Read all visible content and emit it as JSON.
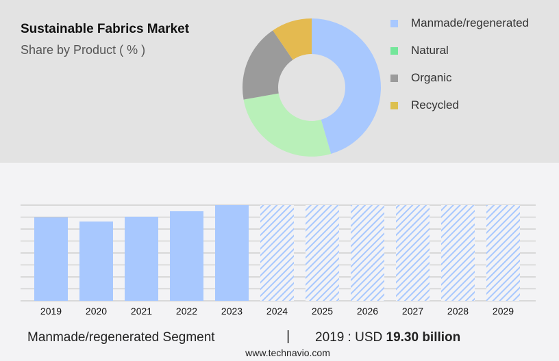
{
  "chart_data": [
    {
      "type": "pie",
      "title": "Sustainable Fabrics Market",
      "subtitle": "Share by Product ( % )",
      "labels": [
        "Manmade/regenerated",
        "Natural",
        "Organic",
        "Recycled"
      ],
      "values": [
        45.5,
        26.7,
        18.3,
        9.5
      ],
      "colors": [
        "#a8c8fe",
        "#b9f0b9",
        "#9b9b9b",
        "#e4ba50"
      ],
      "legend_colors": [
        "#a8c8fe",
        "#74e69a",
        "#9b9b9b",
        "#dcc050"
      ],
      "donut": true,
      "legend": "right"
    },
    {
      "type": "bar",
      "categories": [
        "2019",
        "2020",
        "2021",
        "2022",
        "2023",
        "2024",
        "2025",
        "2026",
        "2027",
        "2028",
        "2029"
      ],
      "values": [
        19.3,
        18.35,
        19.46,
        20.72,
        22.14,
        null,
        null,
        null,
        null,
        null,
        null
      ],
      "forecast": [
        "2024",
        "2025",
        "2026",
        "2027",
        "2028",
        "2029"
      ],
      "ylim": [
        0,
        22.14
      ],
      "grid": true,
      "color": "#a8c8fe"
    }
  ],
  "footer": {
    "segment": "Manmade/regenerated Segment",
    "separator": "|",
    "year_label": "2019 : USD ",
    "value": "19.30 billion",
    "url": "www.technavio.com"
  }
}
